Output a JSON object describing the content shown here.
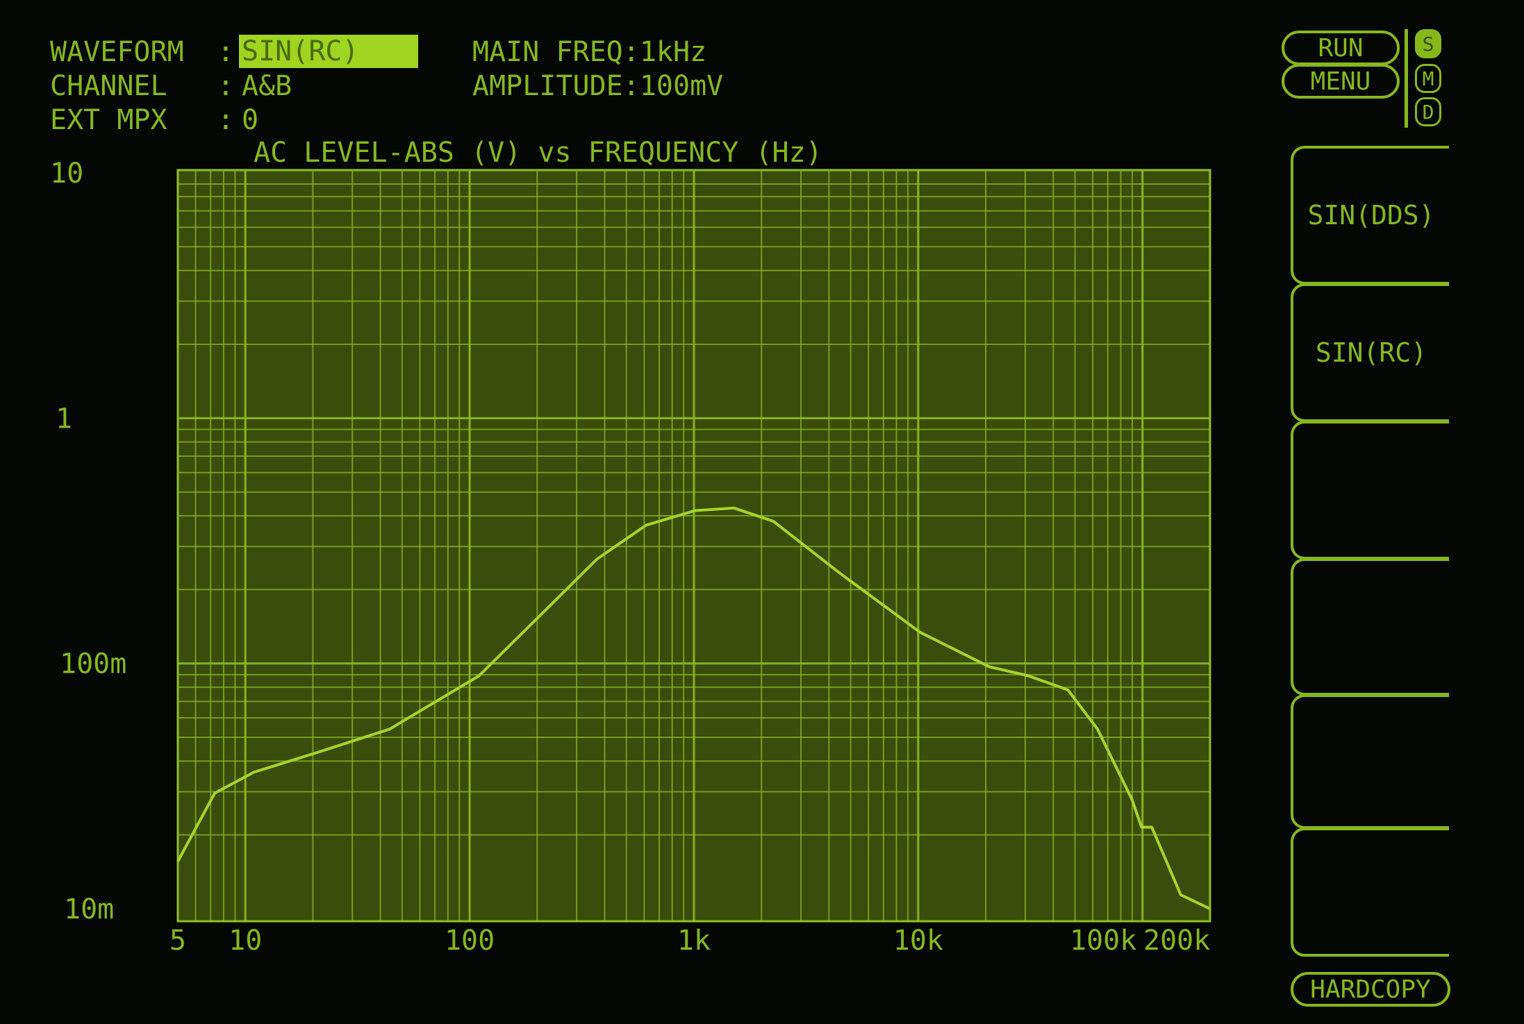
{
  "settings": {
    "waveform_label": "WAVEFORM  :",
    "waveform_value": "SIN(RC)",
    "channel_label": "CHANNEL   :",
    "channel_value": "A&B",
    "ext_mpx_label": "EXT MPX   :",
    "ext_mpx_value": "0",
    "main_freq": "MAIN FREQ:1kHz",
    "amplitude": "AMPLITUDE:100mV"
  },
  "controls": {
    "run": "RUN",
    "menu": "MENU",
    "indicators": [
      "S",
      "M",
      "D"
    ],
    "active_indicator": "S",
    "softkeys": [
      "SIN(DDS)",
      "SIN(RC)",
      "",
      "",
      "",
      ""
    ],
    "hardcopy": "HARDCOPY"
  },
  "colors": {
    "trace": "#a6d42a",
    "grid": "#8fbf22",
    "plot_bg": "#3b4d0c",
    "text": "#86b81c"
  },
  "chart_data": {
    "type": "line",
    "title": "AC LEVEL-ABS (V) vs FREQUENCY (Hz)",
    "x_scale": "log",
    "y_scale": "log",
    "xlim": [
      5,
      200000
    ],
    "ylim": [
      0.01,
      10
    ],
    "grid": true,
    "x_ticks": [
      {
        "v": 5,
        "label": "5"
      },
      {
        "v": 10,
        "label": "10"
      },
      {
        "v": 100,
        "label": "100"
      },
      {
        "v": 1000,
        "label": "1k"
      },
      {
        "v": 10000,
        "label": "10k"
      },
      {
        "v": 100000,
        "label": "100k"
      },
      {
        "v": 200000,
        "label": "200k"
      }
    ],
    "y_ticks": [
      {
        "v": 10,
        "label": "10"
      },
      {
        "v": 1,
        "label": "1"
      },
      {
        "v": 0.1,
        "label": "100m"
      },
      {
        "v": 0.01,
        "label": "10m"
      }
    ],
    "series": [
      {
        "x": [
          5,
          7.3,
          10.9,
          22,
          44,
          110,
          202,
          369,
          611,
          1010,
          1510,
          2260,
          4570,
          10200,
          20700,
          31000,
          46500,
          63000,
          89600,
          99000,
          110000,
          148000,
          200000
        ],
        "y": [
          0.0156,
          0.0296,
          0.036,
          0.044,
          0.054,
          0.089,
          0.154,
          0.266,
          0.366,
          0.42,
          0.43,
          0.38,
          0.23,
          0.134,
          0.097,
          0.089,
          0.078,
          0.054,
          0.028,
          0.0215,
          0.0215,
          0.0114,
          0.01
        ]
      }
    ]
  }
}
